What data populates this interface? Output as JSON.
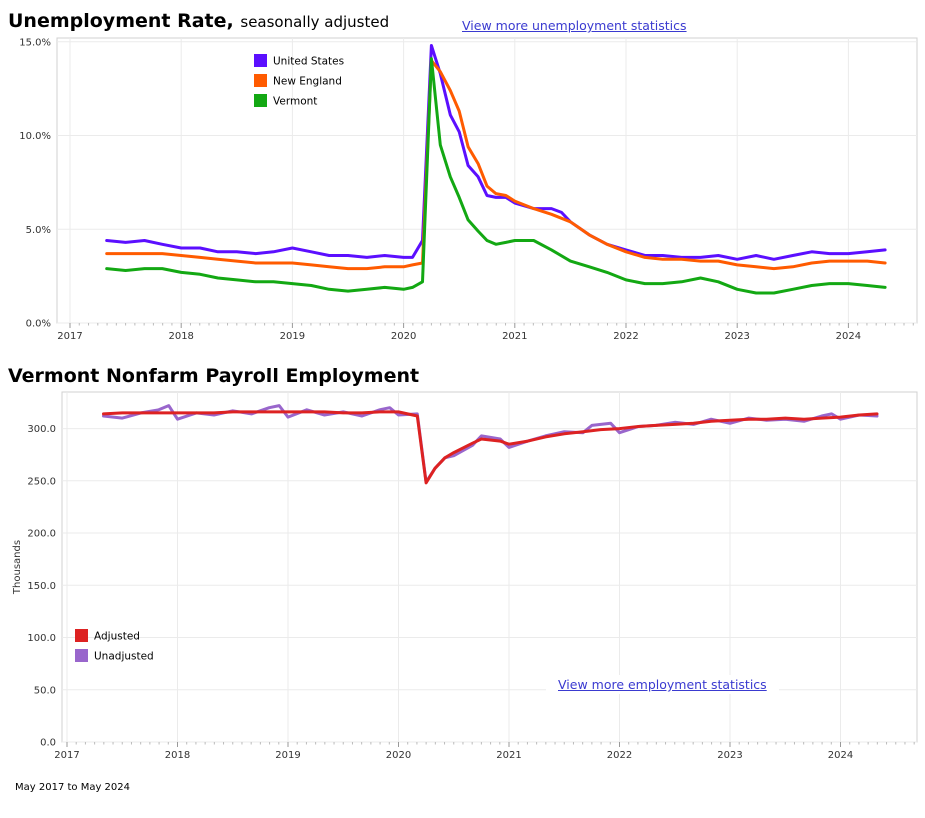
{
  "unemployment": {
    "title": "Unemployment Rate,",
    "subtitle": "seasonally adjusted",
    "link": "View more unemployment statistics"
  },
  "payroll": {
    "title": "Vermont Nonfarm Payroll Employment",
    "link": "View more employment statistics"
  },
  "date_range": "May 2017 to May 2024",
  "chart_data": [
    {
      "type": "line",
      "ylim": [
        0,
        15.2
      ],
      "y_ticks": [
        0,
        5,
        10,
        15
      ],
      "y_tick_labels": [
        "0.0%",
        "5.0%",
        "10.0%",
        "15.0%"
      ],
      "x_ticks": [
        2017,
        2018,
        2019,
        2020,
        2021,
        2022,
        2023,
        2024
      ],
      "x_tick_labels": [
        "2017",
        "2018",
        "2019",
        "2020",
        "2021",
        "2022",
        "2023",
        "2024"
      ],
      "grid": true,
      "legend": "top-left",
      "series": [
        {
          "name": "United States",
          "color": "#5b0fff",
          "points": [
            [
              2017.33,
              4.4
            ],
            [
              2017.5,
              4.3
            ],
            [
              2017.67,
              4.4
            ],
            [
              2017.83,
              4.2
            ],
            [
              2018.0,
              4.0
            ],
            [
              2018.17,
              4.0
            ],
            [
              2018.33,
              3.8
            ],
            [
              2018.5,
              3.8
            ],
            [
              2018.67,
              3.7
            ],
            [
              2018.83,
              3.8
            ],
            [
              2019.0,
              4.0
            ],
            [
              2019.17,
              3.8
            ],
            [
              2019.33,
              3.6
            ],
            [
              2019.5,
              3.6
            ],
            [
              2019.67,
              3.5
            ],
            [
              2019.83,
              3.6
            ],
            [
              2020.0,
              3.5
            ],
            [
              2020.08,
              3.5
            ],
            [
              2020.17,
              4.4
            ],
            [
              2020.25,
              14.8
            ],
            [
              2020.33,
              13.3
            ],
            [
              2020.42,
              11.1
            ],
            [
              2020.5,
              10.2
            ],
            [
              2020.58,
              8.4
            ],
            [
              2020.67,
              7.8
            ],
            [
              2020.75,
              6.8
            ],
            [
              2020.83,
              6.7
            ],
            [
              2020.92,
              6.7
            ],
            [
              2021.0,
              6.4
            ],
            [
              2021.17,
              6.1
            ],
            [
              2021.33,
              6.1
            ],
            [
              2021.42,
              5.9
            ],
            [
              2021.5,
              5.4
            ],
            [
              2021.67,
              4.7
            ],
            [
              2021.83,
              4.2
            ],
            [
              2022.0,
              3.9
            ],
            [
              2022.17,
              3.6
            ],
            [
              2022.33,
              3.6
            ],
            [
              2022.5,
              3.5
            ],
            [
              2022.67,
              3.5
            ],
            [
              2022.83,
              3.6
            ],
            [
              2023.0,
              3.4
            ],
            [
              2023.17,
              3.6
            ],
            [
              2023.33,
              3.4
            ],
            [
              2023.5,
              3.6
            ],
            [
              2023.67,
              3.8
            ],
            [
              2023.83,
              3.7
            ],
            [
              2024.0,
              3.7
            ],
            [
              2024.17,
              3.8
            ],
            [
              2024.33,
              3.9
            ]
          ]
        },
        {
          "name": "New England",
          "color": "#ff5b00",
          "points": [
            [
              2017.33,
              3.7
            ],
            [
              2017.5,
              3.7
            ],
            [
              2017.67,
              3.7
            ],
            [
              2017.83,
              3.7
            ],
            [
              2018.0,
              3.6
            ],
            [
              2018.17,
              3.5
            ],
            [
              2018.33,
              3.4
            ],
            [
              2018.5,
              3.3
            ],
            [
              2018.67,
              3.2
            ],
            [
              2018.83,
              3.2
            ],
            [
              2019.0,
              3.2
            ],
            [
              2019.17,
              3.1
            ],
            [
              2019.33,
              3.0
            ],
            [
              2019.5,
              2.9
            ],
            [
              2019.67,
              2.9
            ],
            [
              2019.83,
              3.0
            ],
            [
              2020.0,
              3.0
            ],
            [
              2020.08,
              3.1
            ],
            [
              2020.17,
              3.2
            ],
            [
              2020.25,
              14.0
            ],
            [
              2020.33,
              13.4
            ],
            [
              2020.42,
              12.4
            ],
            [
              2020.5,
              11.3
            ],
            [
              2020.58,
              9.4
            ],
            [
              2020.67,
              8.5
            ],
            [
              2020.75,
              7.3
            ],
            [
              2020.83,
              6.9
            ],
            [
              2020.92,
              6.8
            ],
            [
              2021.0,
              6.5
            ],
            [
              2021.17,
              6.1
            ],
            [
              2021.33,
              5.8
            ],
            [
              2021.5,
              5.4
            ],
            [
              2021.67,
              4.7
            ],
            [
              2021.83,
              4.2
            ],
            [
              2022.0,
              3.8
            ],
            [
              2022.17,
              3.5
            ],
            [
              2022.33,
              3.4
            ],
            [
              2022.5,
              3.4
            ],
            [
              2022.67,
              3.3
            ],
            [
              2022.83,
              3.3
            ],
            [
              2023.0,
              3.1
            ],
            [
              2023.17,
              3.0
            ],
            [
              2023.33,
              2.9
            ],
            [
              2023.5,
              3.0
            ],
            [
              2023.67,
              3.2
            ],
            [
              2023.83,
              3.3
            ],
            [
              2024.0,
              3.3
            ],
            [
              2024.17,
              3.3
            ],
            [
              2024.33,
              3.2
            ]
          ]
        },
        {
          "name": "Vermont",
          "color": "#13a813",
          "points": [
            [
              2017.33,
              2.9
            ],
            [
              2017.5,
              2.8
            ],
            [
              2017.67,
              2.9
            ],
            [
              2017.83,
              2.9
            ],
            [
              2018.0,
              2.7
            ],
            [
              2018.17,
              2.6
            ],
            [
              2018.33,
              2.4
            ],
            [
              2018.5,
              2.3
            ],
            [
              2018.67,
              2.2
            ],
            [
              2018.83,
              2.2
            ],
            [
              2019.0,
              2.1
            ],
            [
              2019.17,
              2.0
            ],
            [
              2019.33,
              1.8
            ],
            [
              2019.5,
              1.7
            ],
            [
              2019.67,
              1.8
            ],
            [
              2019.83,
              1.9
            ],
            [
              2020.0,
              1.8
            ],
            [
              2020.08,
              1.9
            ],
            [
              2020.17,
              2.2
            ],
            [
              2020.25,
              14.1
            ],
            [
              2020.33,
              9.5
            ],
            [
              2020.42,
              7.8
            ],
            [
              2020.5,
              6.7
            ],
            [
              2020.58,
              5.5
            ],
            [
              2020.67,
              4.9
            ],
            [
              2020.75,
              4.4
            ],
            [
              2020.83,
              4.2
            ],
            [
              2020.92,
              4.3
            ],
            [
              2021.0,
              4.4
            ],
            [
              2021.17,
              4.4
            ],
            [
              2021.33,
              3.9
            ],
            [
              2021.5,
              3.3
            ],
            [
              2021.67,
              3.0
            ],
            [
              2021.83,
              2.7
            ],
            [
              2022.0,
              2.3
            ],
            [
              2022.17,
              2.1
            ],
            [
              2022.33,
              2.1
            ],
            [
              2022.5,
              2.2
            ],
            [
              2022.67,
              2.4
            ],
            [
              2022.83,
              2.2
            ],
            [
              2023.0,
              1.8
            ],
            [
              2023.17,
              1.6
            ],
            [
              2023.33,
              1.6
            ],
            [
              2023.5,
              1.8
            ],
            [
              2023.67,
              2.0
            ],
            [
              2023.83,
              2.1
            ],
            [
              2024.0,
              2.1
            ],
            [
              2024.17,
              2.0
            ],
            [
              2024.33,
              1.9
            ]
          ]
        }
      ]
    },
    {
      "type": "line",
      "ylabel": "Thousands",
      "ylim": [
        0,
        335
      ],
      "y_ticks": [
        0,
        50,
        100,
        150,
        200,
        250,
        300
      ],
      "y_tick_labels": [
        "0.0",
        "50.0",
        "100.0",
        "150.0",
        "200.0",
        "250.0",
        "300.0"
      ],
      "x_ticks": [
        2017,
        2018,
        2019,
        2020,
        2021,
        2022,
        2023,
        2024
      ],
      "x_tick_labels": [
        "2017",
        "2018",
        "2019",
        "2020",
        "2021",
        "2022",
        "2023",
        "2024"
      ],
      "grid": true,
      "legend": "bottom-left",
      "series": [
        {
          "name": "Unadjusted",
          "color": "#9966cc",
          "points": [
            [
              2017.33,
              312
            ],
            [
              2017.5,
              310
            ],
            [
              2017.67,
              315
            ],
            [
              2017.83,
              318
            ],
            [
              2017.92,
              322
            ],
            [
              2018.0,
              309
            ],
            [
              2018.17,
              315
            ],
            [
              2018.33,
              313
            ],
            [
              2018.5,
              317
            ],
            [
              2018.67,
              314
            ],
            [
              2018.83,
              320
            ],
            [
              2018.92,
              322
            ],
            [
              2019.0,
              311
            ],
            [
              2019.17,
              318
            ],
            [
              2019.33,
              313
            ],
            [
              2019.5,
              316
            ],
            [
              2019.67,
              312
            ],
            [
              2019.83,
              318
            ],
            [
              2019.92,
              320
            ],
            [
              2020.0,
              313
            ],
            [
              2020.17,
              314
            ],
            [
              2020.25,
              249
            ],
            [
              2020.33,
              262
            ],
            [
              2020.42,
              272
            ],
            [
              2020.5,
              274
            ],
            [
              2020.67,
              284
            ],
            [
              2020.75,
              293
            ],
            [
              2020.92,
              290
            ],
            [
              2021.0,
              282
            ],
            [
              2021.17,
              288
            ],
            [
              2021.33,
              293
            ],
            [
              2021.5,
              297
            ],
            [
              2021.67,
              296
            ],
            [
              2021.75,
              303
            ],
            [
              2021.92,
              305
            ],
            [
              2022.0,
              296
            ],
            [
              2022.17,
              302
            ],
            [
              2022.33,
              303
            ],
            [
              2022.5,
              306
            ],
            [
              2022.67,
              304
            ],
            [
              2022.83,
              309
            ],
            [
              2023.0,
              305
            ],
            [
              2023.17,
              310
            ],
            [
              2023.33,
              308
            ],
            [
              2023.5,
              309
            ],
            [
              2023.67,
              307
            ],
            [
              2023.83,
              312
            ],
            [
              2023.92,
              314
            ],
            [
              2024.0,
              309
            ],
            [
              2024.17,
              313
            ],
            [
              2024.33,
              312
            ]
          ]
        },
        {
          "name": "Adjusted",
          "color": "#dd2222",
          "points": [
            [
              2017.33,
              314
            ],
            [
              2017.5,
              315
            ],
            [
              2017.67,
              315
            ],
            [
              2017.83,
              315
            ],
            [
              2018.0,
              315
            ],
            [
              2018.17,
              315
            ],
            [
              2018.33,
              315
            ],
            [
              2018.5,
              316
            ],
            [
              2018.67,
              316
            ],
            [
              2018.83,
              316
            ],
            [
              2019.0,
              316
            ],
            [
              2019.17,
              316
            ],
            [
              2019.33,
              316
            ],
            [
              2019.5,
              315
            ],
            [
              2019.67,
              315
            ],
            [
              2019.83,
              316
            ],
            [
              2020.0,
              316
            ],
            [
              2020.17,
              312
            ],
            [
              2020.25,
              248
            ],
            [
              2020.33,
              262
            ],
            [
              2020.42,
              272
            ],
            [
              2020.5,
              277
            ],
            [
              2020.67,
              286
            ],
            [
              2020.75,
              290
            ],
            [
              2020.92,
              288
            ],
            [
              2021.0,
              285
            ],
            [
              2021.17,
              288
            ],
            [
              2021.33,
              292
            ],
            [
              2021.5,
              295
            ],
            [
              2021.67,
              297
            ],
            [
              2021.83,
              299
            ],
            [
              2022.0,
              300
            ],
            [
              2022.17,
              302
            ],
            [
              2022.33,
              303
            ],
            [
              2022.5,
              304
            ],
            [
              2022.67,
              305
            ],
            [
              2022.83,
              307
            ],
            [
              2023.0,
              308
            ],
            [
              2023.17,
              309
            ],
            [
              2023.33,
              309
            ],
            [
              2023.5,
              310
            ],
            [
              2023.67,
              309
            ],
            [
              2023.83,
              310
            ],
            [
              2024.0,
              311
            ],
            [
              2024.17,
              313
            ],
            [
              2024.33,
              314
            ]
          ]
        }
      ]
    }
  ]
}
